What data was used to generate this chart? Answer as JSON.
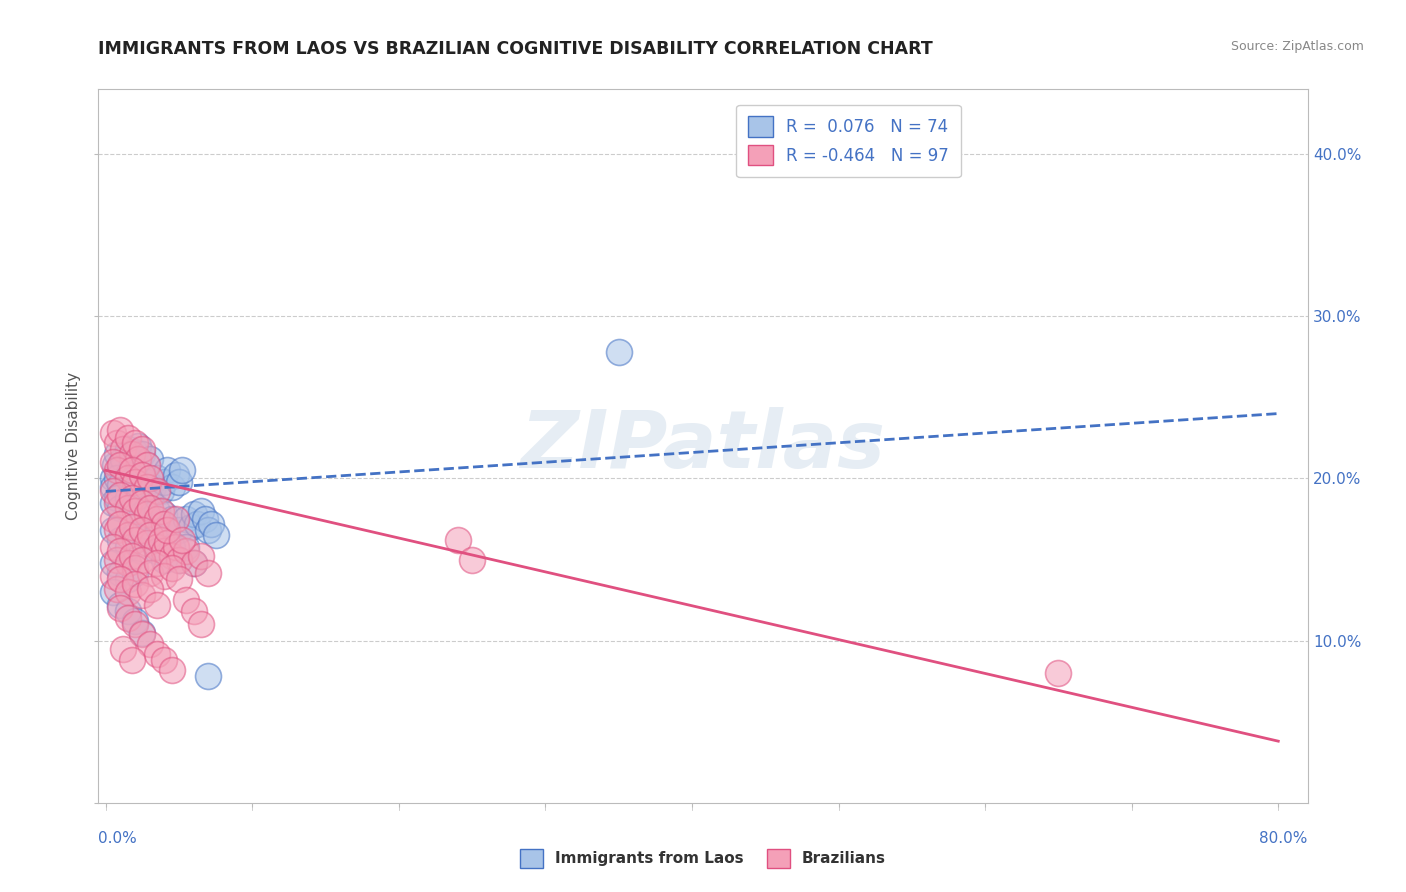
{
  "title": "IMMIGRANTS FROM LAOS VS BRAZILIAN COGNITIVE DISABILITY CORRELATION CHART",
  "source": "Source: ZipAtlas.com",
  "ylabel": "Cognitive Disability",
  "watermark": "ZIPatlas",
  "legend_label1": "Immigrants from Laos",
  "legend_label2": "Brazilians",
  "r1": "0.076",
  "n1": "74",
  "r2": "-0.464",
  "n2": "97",
  "color_blue": "#a8c4e8",
  "color_pink": "#f4a0b8",
  "line_blue": "#4472c4",
  "line_pink": "#e05080",
  "background": "#ffffff",
  "grid_color": "#cccccc",
  "tick_color": "#4472c4",
  "blue_scatter": [
    [
      0.005,
      0.2
    ],
    [
      0.006,
      0.208
    ],
    [
      0.008,
      0.215
    ],
    [
      0.01,
      0.205
    ],
    [
      0.012,
      0.212
    ],
    [
      0.015,
      0.218
    ],
    [
      0.018,
      0.21
    ],
    [
      0.02,
      0.216
    ],
    [
      0.022,
      0.22
    ],
    [
      0.025,
      0.215
    ],
    [
      0.028,
      0.208
    ],
    [
      0.03,
      0.212
    ],
    [
      0.005,
      0.195
    ],
    [
      0.008,
      0.2
    ],
    [
      0.01,
      0.196
    ],
    [
      0.015,
      0.202
    ],
    [
      0.018,
      0.195
    ],
    [
      0.02,
      0.2
    ],
    [
      0.025,
      0.192
    ],
    [
      0.028,
      0.198
    ],
    [
      0.03,
      0.188
    ],
    [
      0.032,
      0.195
    ],
    [
      0.035,
      0.2
    ],
    [
      0.038,
      0.192
    ],
    [
      0.04,
      0.198
    ],
    [
      0.042,
      0.205
    ],
    [
      0.045,
      0.195
    ],
    [
      0.048,
      0.202
    ],
    [
      0.05,
      0.198
    ],
    [
      0.052,
      0.205
    ],
    [
      0.005,
      0.185
    ],
    [
      0.008,
      0.188
    ],
    [
      0.01,
      0.182
    ],
    [
      0.015,
      0.188
    ],
    [
      0.018,
      0.18
    ],
    [
      0.02,
      0.185
    ],
    [
      0.025,
      0.178
    ],
    [
      0.028,
      0.182
    ],
    [
      0.03,
      0.175
    ],
    [
      0.035,
      0.18
    ],
    [
      0.038,
      0.172
    ],
    [
      0.04,
      0.178
    ],
    [
      0.042,
      0.17
    ],
    [
      0.045,
      0.175
    ],
    [
      0.05,
      0.168
    ],
    [
      0.055,
      0.175
    ],
    [
      0.058,
      0.17
    ],
    [
      0.06,
      0.178
    ],
    [
      0.062,
      0.172
    ],
    [
      0.065,
      0.18
    ],
    [
      0.068,
      0.175
    ],
    [
      0.07,
      0.168
    ],
    [
      0.072,
      0.172
    ],
    [
      0.075,
      0.165
    ],
    [
      0.005,
      0.168
    ],
    [
      0.01,
      0.162
    ],
    [
      0.015,
      0.158
    ],
    [
      0.02,
      0.165
    ],
    [
      0.025,
      0.155
    ],
    [
      0.03,
      0.162
    ],
    [
      0.035,
      0.155
    ],
    [
      0.04,
      0.15
    ],
    [
      0.045,
      0.158
    ],
    [
      0.05,
      0.15
    ],
    [
      0.055,
      0.158
    ],
    [
      0.06,
      0.148
    ],
    [
      0.005,
      0.148
    ],
    [
      0.01,
      0.142
    ],
    [
      0.015,
      0.138
    ],
    [
      0.02,
      0.142
    ],
    [
      0.005,
      0.13
    ],
    [
      0.01,
      0.122
    ],
    [
      0.015,
      0.118
    ],
    [
      0.02,
      0.112
    ],
    [
      0.025,
      0.105
    ],
    [
      0.07,
      0.078
    ],
    [
      0.35,
      0.278
    ]
  ],
  "pink_scatter": [
    [
      0.005,
      0.228
    ],
    [
      0.008,
      0.222
    ],
    [
      0.01,
      0.23
    ],
    [
      0.012,
      0.218
    ],
    [
      0.015,
      0.225
    ],
    [
      0.018,
      0.215
    ],
    [
      0.02,
      0.222
    ],
    [
      0.022,
      0.212
    ],
    [
      0.025,
      0.218
    ],
    [
      0.028,
      0.208
    ],
    [
      0.005,
      0.21
    ],
    [
      0.008,
      0.205
    ],
    [
      0.01,
      0.208
    ],
    [
      0.015,
      0.2
    ],
    [
      0.018,
      0.205
    ],
    [
      0.02,
      0.198
    ],
    [
      0.025,
      0.202
    ],
    [
      0.028,
      0.195
    ],
    [
      0.03,
      0.2
    ],
    [
      0.035,
      0.192
    ],
    [
      0.005,
      0.192
    ],
    [
      0.008,
      0.185
    ],
    [
      0.01,
      0.19
    ],
    [
      0.015,
      0.182
    ],
    [
      0.018,
      0.188
    ],
    [
      0.02,
      0.18
    ],
    [
      0.025,
      0.185
    ],
    [
      0.028,
      0.178
    ],
    [
      0.03,
      0.182
    ],
    [
      0.035,
      0.175
    ],
    [
      0.038,
      0.18
    ],
    [
      0.04,
      0.172
    ],
    [
      0.005,
      0.175
    ],
    [
      0.008,
      0.168
    ],
    [
      0.01,
      0.172
    ],
    [
      0.015,
      0.165
    ],
    [
      0.018,
      0.17
    ],
    [
      0.02,
      0.162
    ],
    [
      0.025,
      0.168
    ],
    [
      0.028,
      0.16
    ],
    [
      0.03,
      0.165
    ],
    [
      0.035,
      0.158
    ],
    [
      0.038,
      0.162
    ],
    [
      0.04,
      0.155
    ],
    [
      0.042,
      0.16
    ],
    [
      0.045,
      0.152
    ],
    [
      0.048,
      0.158
    ],
    [
      0.05,
      0.15
    ],
    [
      0.055,
      0.155
    ],
    [
      0.06,
      0.148
    ],
    [
      0.065,
      0.152
    ],
    [
      0.07,
      0.142
    ],
    [
      0.005,
      0.158
    ],
    [
      0.008,
      0.15
    ],
    [
      0.01,
      0.155
    ],
    [
      0.015,
      0.148
    ],
    [
      0.018,
      0.152
    ],
    [
      0.02,
      0.145
    ],
    [
      0.025,
      0.15
    ],
    [
      0.03,
      0.142
    ],
    [
      0.035,
      0.148
    ],
    [
      0.04,
      0.14
    ],
    [
      0.045,
      0.145
    ],
    [
      0.05,
      0.138
    ],
    [
      0.005,
      0.14
    ],
    [
      0.008,
      0.132
    ],
    [
      0.01,
      0.138
    ],
    [
      0.015,
      0.13
    ],
    [
      0.02,
      0.135
    ],
    [
      0.025,
      0.128
    ],
    [
      0.03,
      0.132
    ],
    [
      0.035,
      0.122
    ],
    [
      0.042,
      0.168
    ],
    [
      0.048,
      0.175
    ],
    [
      0.052,
      0.162
    ],
    [
      0.01,
      0.12
    ],
    [
      0.015,
      0.114
    ],
    [
      0.02,
      0.11
    ],
    [
      0.025,
      0.104
    ],
    [
      0.03,
      0.098
    ],
    [
      0.035,
      0.092
    ],
    [
      0.04,
      0.088
    ],
    [
      0.045,
      0.082
    ],
    [
      0.055,
      0.125
    ],
    [
      0.06,
      0.118
    ],
    [
      0.065,
      0.11
    ],
    [
      0.24,
      0.162
    ],
    [
      0.25,
      0.15
    ],
    [
      0.65,
      0.08
    ],
    [
      0.012,
      0.095
    ],
    [
      0.018,
      0.088
    ]
  ],
  "blue_line_x": [
    0.0,
    0.8
  ],
  "blue_line_y": [
    0.192,
    0.24
  ],
  "pink_line_x": [
    0.0,
    0.8
  ],
  "pink_line_y": [
    0.205,
    0.038
  ],
  "xlim": [
    -0.005,
    0.82
  ],
  "ylim": [
    0.0,
    0.44
  ],
  "xticks": [
    0.0,
    0.1,
    0.2,
    0.3,
    0.4,
    0.5,
    0.6,
    0.7,
    0.8
  ],
  "yticks": [
    0.0,
    0.1,
    0.2,
    0.3,
    0.4
  ],
  "ytick_labels_left": [
    "",
    "10.0%",
    "20.0%",
    "30.0%",
    "40.0%"
  ],
  "ytick_labels_right": [
    "",
    "10.0%",
    "20.0%",
    "30.0%",
    "40.0%"
  ],
  "xtick_labels": [
    "0.0%",
    "",
    "",
    "",
    "",
    "",
    "",
    "",
    "80.0%"
  ]
}
